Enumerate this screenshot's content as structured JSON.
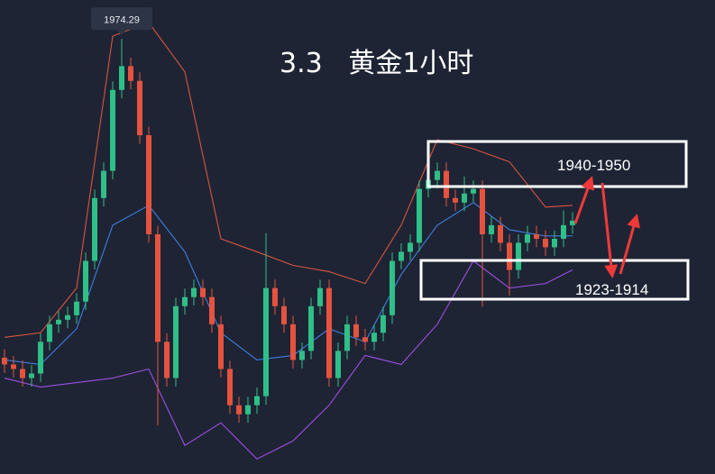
{
  "chart_data": {
    "type": "candlestick",
    "title": "3.3   黄金1小时",
    "ylim": [
      1900,
      1978
    ],
    "up_color": "#2fbf88",
    "down_color": "#e5533f",
    "open": [
      1918.0,
      1916.8,
      1916.0,
      1914.4,
      1915.2,
      1920.8,
      1923.9,
      1924.7,
      1925.5,
      1927.9,
      1935.1,
      1946.2,
      1951.0,
      1965.3,
      1969.5,
      1966.9,
      1957.3,
      1939.8,
      1920.8,
      1914.4,
      1927.1,
      1928.7,
      1930.3,
      1928.7,
      1923.9,
      1916.0,
      1909.6,
      1908.0,
      1909.6,
      1911.2,
      1930.3,
      1927.1,
      1923.9,
      1917.6,
      1919.2,
      1927.1,
      1930.3,
      1914.4,
      1919.2,
      1923.9,
      1921.6,
      1920.8,
      1922.4,
      1925.5,
      1935.1,
      1936.7,
      1938.3,
      1947.8,
      1949.4,
      1951.0,
      1946.2,
      1945.4,
      1947.0,
      1947.8,
      1939.8,
      1941.4,
      1938.3,
      1933.5,
      1938.3,
      1939.8,
      1939.0,
      1937.5,
      1939.0,
      1941.4
    ],
    "high": [
      1919.5,
      1918.3,
      1917.5,
      1916.7,
      1922.3,
      1925.4,
      1926.2,
      1927.0,
      1929.4,
      1936.6,
      1947.7,
      1952.5,
      1966.8,
      1974.29,
      1971.0,
      1968.4,
      1958.8,
      1941.3,
      1922.3,
      1928.6,
      1930.2,
      1931.8,
      1931.8,
      1930.2,
      1925.4,
      1917.5,
      1911.1,
      1911.1,
      1912.7,
      1940.0,
      1931.8,
      1928.6,
      1925.4,
      1920.7,
      1928.6,
      1931.8,
      1931.8,
      1920.7,
      1925.4,
      1925.4,
      1923.1,
      1923.9,
      1927.0,
      1936.6,
      1938.2,
      1939.8,
      1949.3,
      1950.9,
      1952.5,
      1952.5,
      1947.7,
      1950.0,
      1949.3,
      1949.3,
      1942.9,
      1942.9,
      1939.8,
      1939.8,
      1941.3,
      1941.3,
      1940.5,
      1940.5,
      1944.0,
      1943.7
    ],
    "low": [
      1915.3,
      1914.5,
      1912.9,
      1912.9,
      1913.7,
      1919.3,
      1922.4,
      1923.2,
      1924.0,
      1926.4,
      1933.6,
      1944.7,
      1949.5,
      1963.8,
      1965.4,
      1955.8,
      1938.3,
      1906.0,
      1912.9,
      1912.9,
      1925.6,
      1927.2,
      1927.2,
      1922.4,
      1914.5,
      1908.1,
      1906.5,
      1906.5,
      1908.1,
      1909.7,
      1925.6,
      1922.4,
      1916.1,
      1916.1,
      1917.7,
      1925.6,
      1912.9,
      1912.9,
      1917.7,
      1920.1,
      1919.3,
      1919.3,
      1920.9,
      1924.0,
      1933.6,
      1935.2,
      1936.8,
      1946.3,
      1947.9,
      1944.7,
      1943.9,
      1943.9,
      1945.5,
      1927.0,
      1938.3,
      1936.8,
      1929.0,
      1932.0,
      1936.8,
      1937.5,
      1936.0,
      1936.0,
      1937.5,
      1939.9
    ],
    "close": [
      1916.8,
      1916.0,
      1914.4,
      1915.2,
      1920.8,
      1923.9,
      1924.7,
      1925.5,
      1927.9,
      1935.1,
      1946.2,
      1951.0,
      1965.3,
      1969.5,
      1966.9,
      1957.3,
      1939.8,
      1920.8,
      1914.4,
      1927.1,
      1928.7,
      1930.3,
      1928.7,
      1923.9,
      1916.0,
      1909.6,
      1908.0,
      1909.6,
      1911.2,
      1930.3,
      1927.1,
      1923.9,
      1917.6,
      1919.2,
      1927.1,
      1930.3,
      1914.4,
      1919.2,
      1923.9,
      1921.6,
      1920.8,
      1922.4,
      1925.5,
      1935.1,
      1936.7,
      1938.3,
      1947.8,
      1949.4,
      1951.0,
      1946.2,
      1945.4,
      1947.0,
      1947.8,
      1939.8,
      1941.4,
      1938.3,
      1933.5,
      1938.3,
      1939.8,
      1939.0,
      1937.5,
      1939.0,
      1941.4,
      1942.2
    ],
    "peak_index": 13,
    "bands": [
      {
        "color": "#d8553f",
        "x": [
          0,
          4,
          8,
          12,
          16,
          20,
          24,
          28,
          32,
          36,
          40,
          44,
          48,
          52,
          56,
          60,
          63
        ],
        "values": [
          1921.6,
          1922.4,
          1930.3,
          1974.8,
          1977.2,
          1968.5,
          1939.0,
          1936.7,
          1934.3,
          1933.2,
          1931.1,
          1941.4,
          1956.5,
          1954.9,
          1952.6,
          1944.6,
          1944.9
        ]
      },
      {
        "color": "#3f7fe0",
        "x": [
          0,
          4,
          8,
          12,
          16,
          20,
          24,
          28,
          32,
          36,
          40,
          44,
          48,
          52,
          56,
          60,
          63
        ],
        "values": [
          1917.6,
          1916.8,
          1923.1,
          1941.4,
          1944.9,
          1936.7,
          1922.4,
          1917.6,
          1918.4,
          1923.1,
          1920.8,
          1932.7,
          1941.4,
          1945.4,
          1940.6,
          1939.5,
          1939.5
        ]
      },
      {
        "color": "#9b4fe0",
        "x": [
          0,
          4,
          8,
          12,
          16,
          20,
          24,
          28,
          32,
          36,
          40,
          44,
          48,
          52,
          56,
          60,
          63
        ],
        "values": [
          1914.4,
          1912.8,
          1913.6,
          1914.4,
          1916.0,
          1902.5,
          1906.5,
          1900.1,
          1903.3,
          1909.6,
          1918.4,
          1916.8,
          1923.9,
          1935.1,
          1930.3,
          1931.1,
          1933.5
        ]
      }
    ],
    "annotations": [
      "1940-1950",
      "1923-1914"
    ]
  }
}
